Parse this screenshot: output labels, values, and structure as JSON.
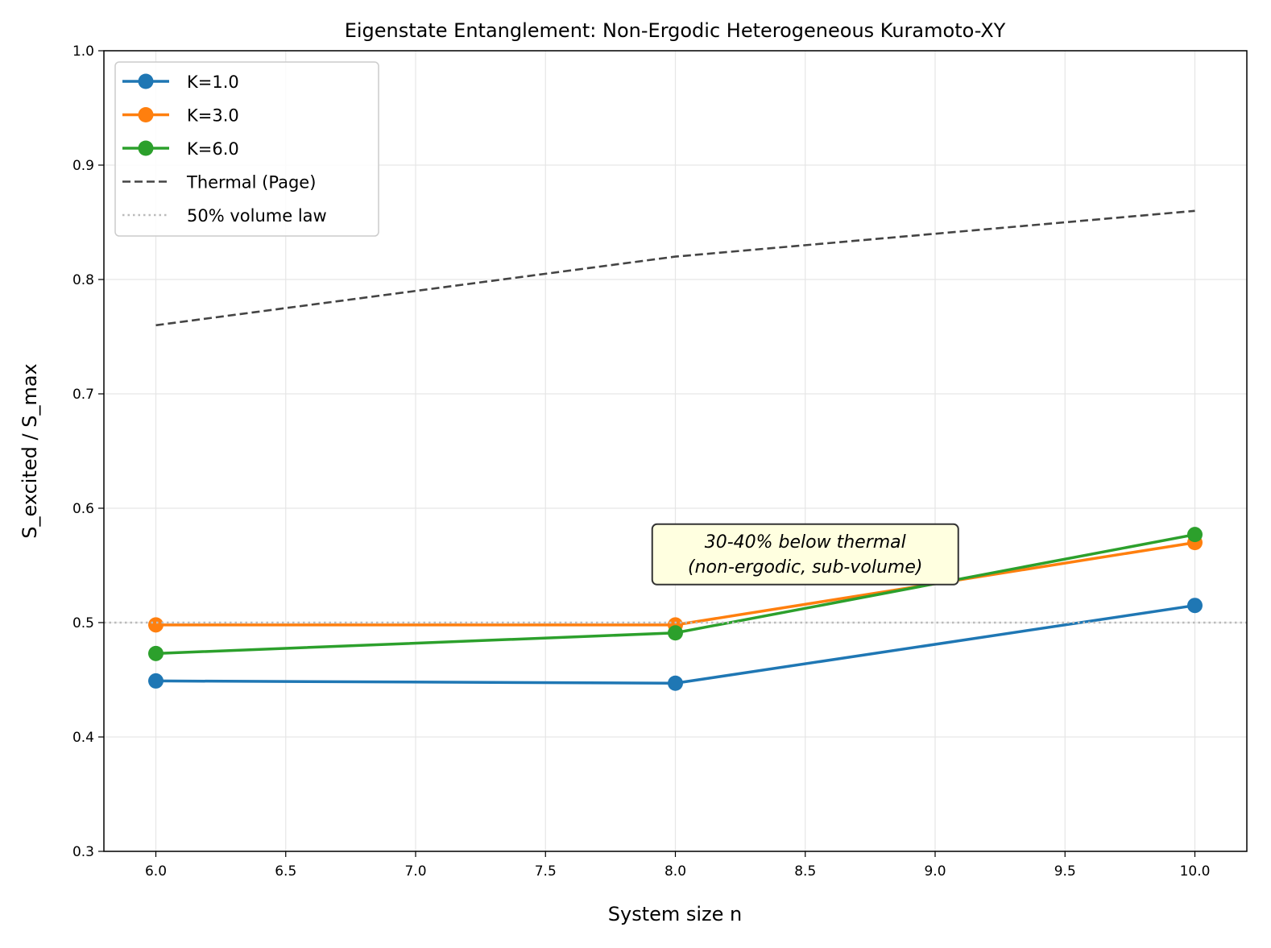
{
  "chart_data": {
    "type": "line",
    "title": "Eigenstate Entanglement: Non-Ergodic Heterogeneous Kuramoto-XY",
    "xlabel": "System size n",
    "ylabel": "S_excited / S_max",
    "xlim": [
      5.8,
      10.2
    ],
    "ylim": [
      0.3,
      1.0
    ],
    "xticks": [
      "6.0",
      "6.5",
      "7.0",
      "7.5",
      "8.0",
      "8.5",
      "9.0",
      "9.5",
      "10.0"
    ],
    "yticks": [
      "0.3",
      "0.4",
      "0.5",
      "0.6",
      "0.7",
      "0.8",
      "0.9",
      "1.0"
    ],
    "grid": true,
    "legend_position": "top-left",
    "x": [
      6,
      8,
      10
    ],
    "series": [
      {
        "name": "K=1.0",
        "values": [
          0.449,
          0.447,
          0.515
        ],
        "color": "#1f77b4",
        "style": "solid-marker"
      },
      {
        "name": "K=3.0",
        "values": [
          0.498,
          0.498,
          0.57
        ],
        "color": "#ff7f0e",
        "style": "solid-marker"
      },
      {
        "name": "K=6.0",
        "values": [
          0.473,
          0.491,
          0.577
        ],
        "color": "#2ca02c",
        "style": "solid-marker"
      },
      {
        "name": "Thermal (Page)",
        "values": [
          0.76,
          0.82,
          0.86
        ],
        "color": "#444444",
        "style": "dashed"
      },
      {
        "name": "50% volume law",
        "hline": 0.5,
        "color": "#bbbbbb",
        "style": "dotted"
      }
    ],
    "annotation": {
      "lines": [
        "30-40% below thermal",
        "(non-ergodic, sub-volume)"
      ],
      "x": 8.5,
      "y": 0.56,
      "background": "#ffffe0"
    }
  }
}
